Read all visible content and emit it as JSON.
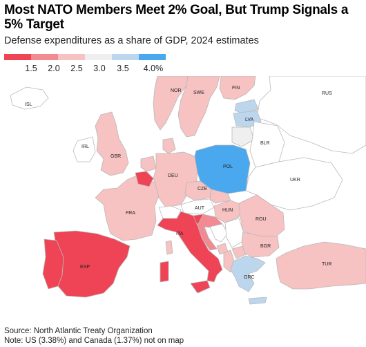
{
  "title": "Most NATO Members Meet 2% Goal, But Trump Signals a 5% Target",
  "subtitle": "Defense expenditures as a share of GDP, 2024 estimates",
  "legend": {
    "colors": [
      "#ee4455",
      "#f28a93",
      "#f6c2c2",
      "#efefef",
      "#bcd6ee",
      "#4aa8ee"
    ],
    "ticks": [
      "1.5",
      "2.0",
      "2.5",
      "3.0",
      "3.5",
      "4.0%"
    ]
  },
  "colors": {
    "non_nato": "#ffffff",
    "border": "#b9b9b9",
    "sea": "#ffffff"
  },
  "countries": {
    "isl": "ISL",
    "irl": "IRL",
    "gbr": "GBR",
    "nor": "NOR",
    "swe": "SWE",
    "fin": "FIN",
    "rus": "RUS",
    "lva": "LVA",
    "blr": "BLR",
    "pol": "POL",
    "deu": "DEU",
    "ukr": "UKR",
    "cze": "CZE",
    "fra": "FRA",
    "aut": "AUT",
    "hun": "HUN",
    "rou": "ROU",
    "ita": "ITA",
    "bgr": "BGR",
    "esp": "ESP",
    "tur": "TUR",
    "grc": "GRC"
  },
  "footer": {
    "source": "Source: North Atlantic Treaty Organization",
    "note": "Note: US (3.38%) and Canada (1.37%) not on map"
  }
}
